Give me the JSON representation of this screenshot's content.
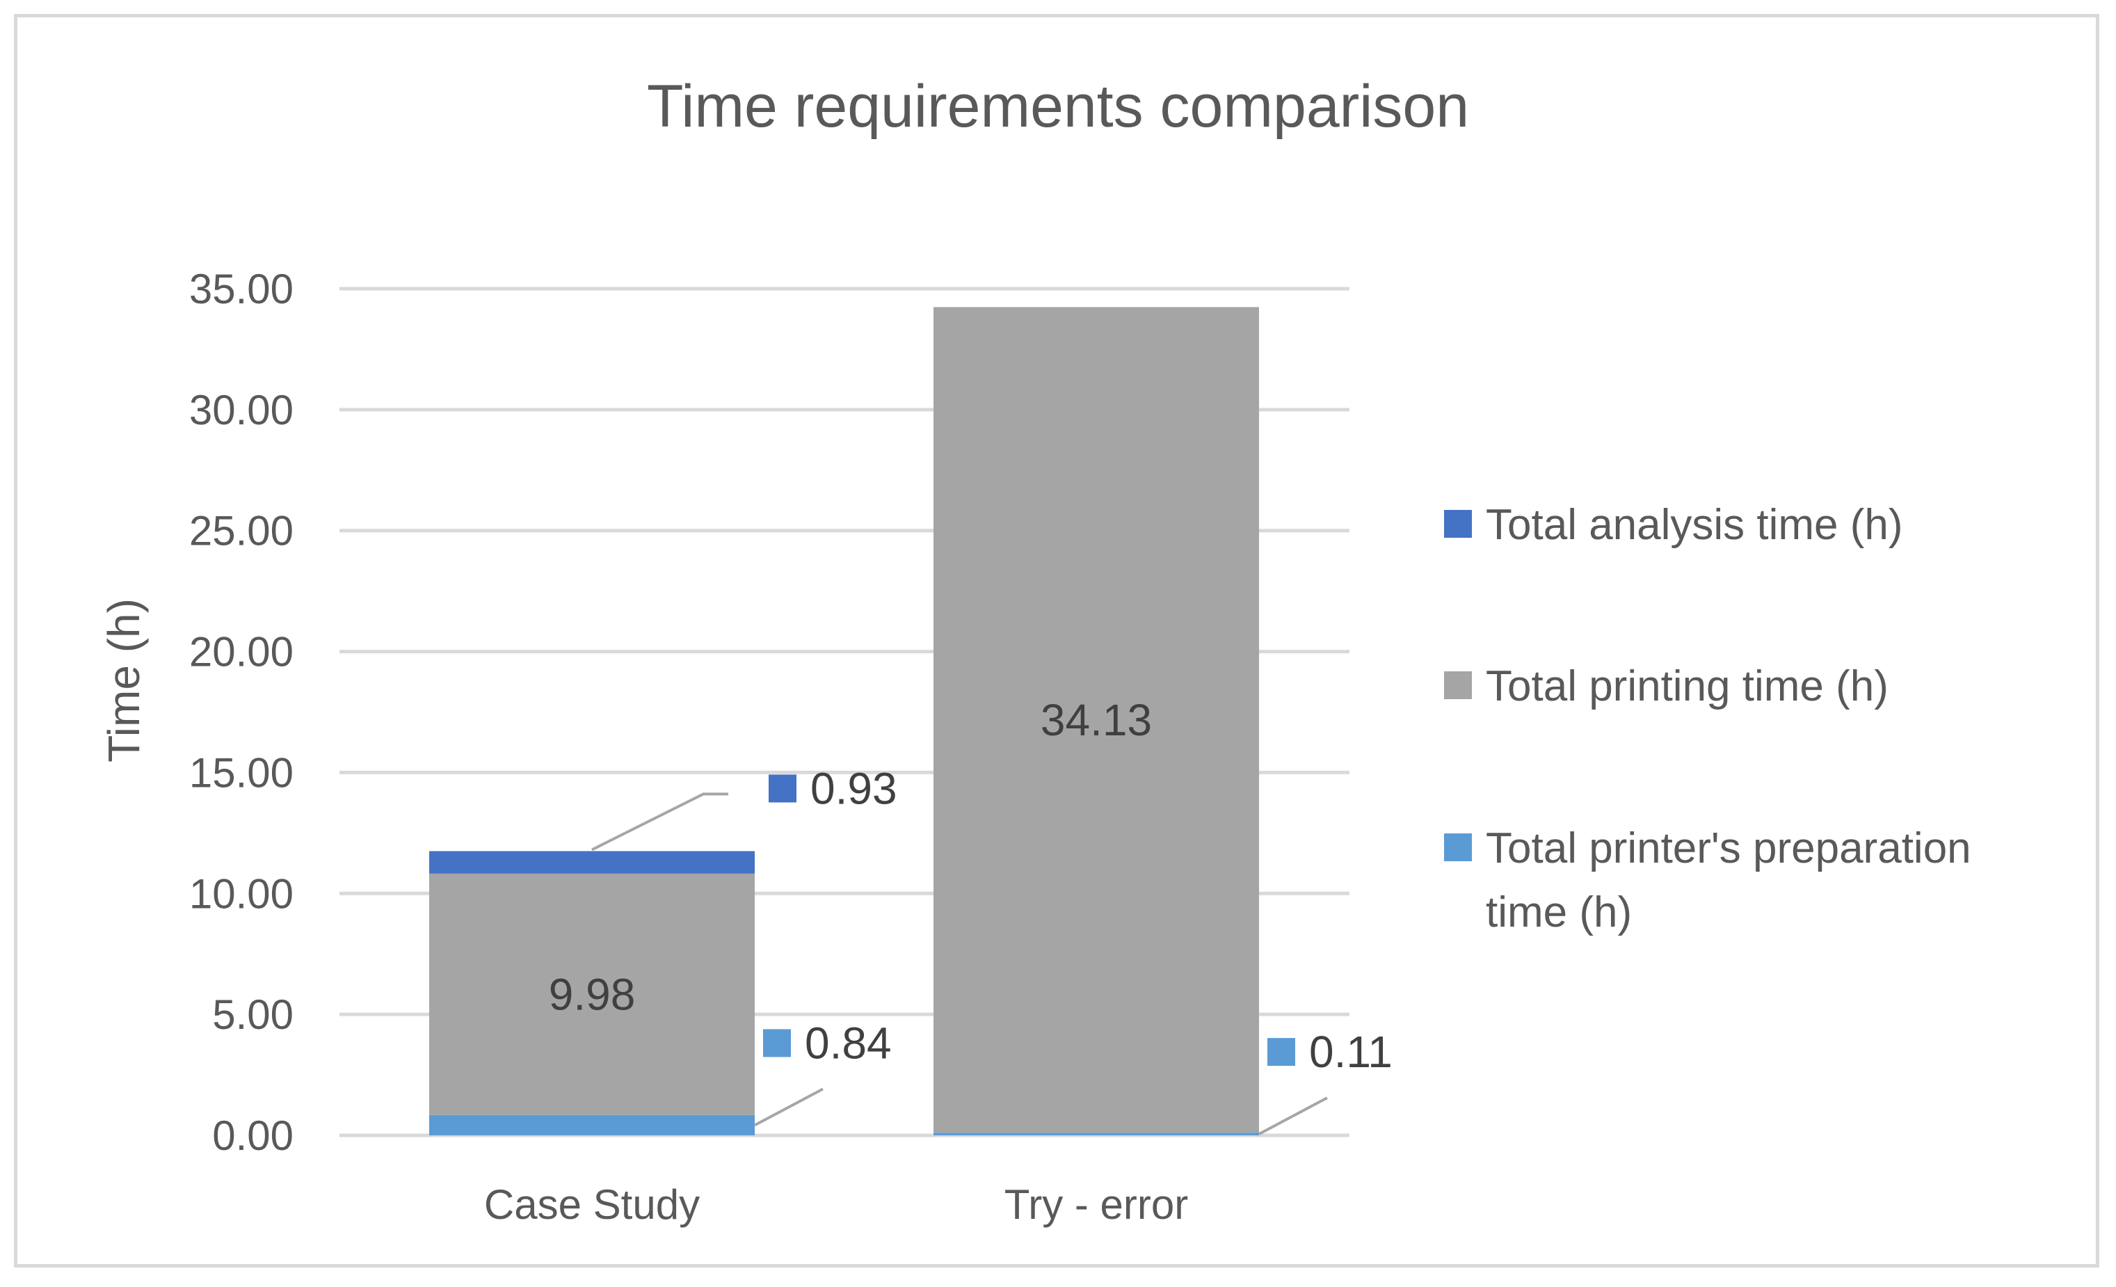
{
  "chart_data": {
    "type": "bar",
    "stacked": true,
    "title": "Time requirements comparison",
    "xlabel": "",
    "ylabel": "Time (h)",
    "ylim": [
      0,
      35
    ],
    "yticks": [
      "0.00",
      "5.00",
      "10.00",
      "15.00",
      "20.00",
      "25.00",
      "30.00",
      "35.00"
    ],
    "grid": true,
    "legend_position": "right",
    "categories": [
      "Case Study",
      "Try - error"
    ],
    "series": [
      {
        "name": "Total printer's preparation time (h)",
        "legend_lines": [
          "Total printer's preparation",
          "time (h)"
        ],
        "color": "#5b9bd5",
        "values": [
          0.84,
          0.11
        ],
        "labels": [
          "0.84",
          "0.11"
        ]
      },
      {
        "name": "Total printing time (h)",
        "legend_lines": [
          "Total printing time (h)"
        ],
        "color": "#a5a5a5",
        "values": [
          9.98,
          34.13
        ],
        "labels": [
          "9.98",
          "34.13"
        ]
      },
      {
        "name": "Total analysis time (h)",
        "legend_lines": [
          "Total analysis time (h)"
        ],
        "color": "#4472c4",
        "values": [
          0.93,
          0
        ],
        "labels": [
          "0.93",
          ""
        ]
      }
    ]
  }
}
